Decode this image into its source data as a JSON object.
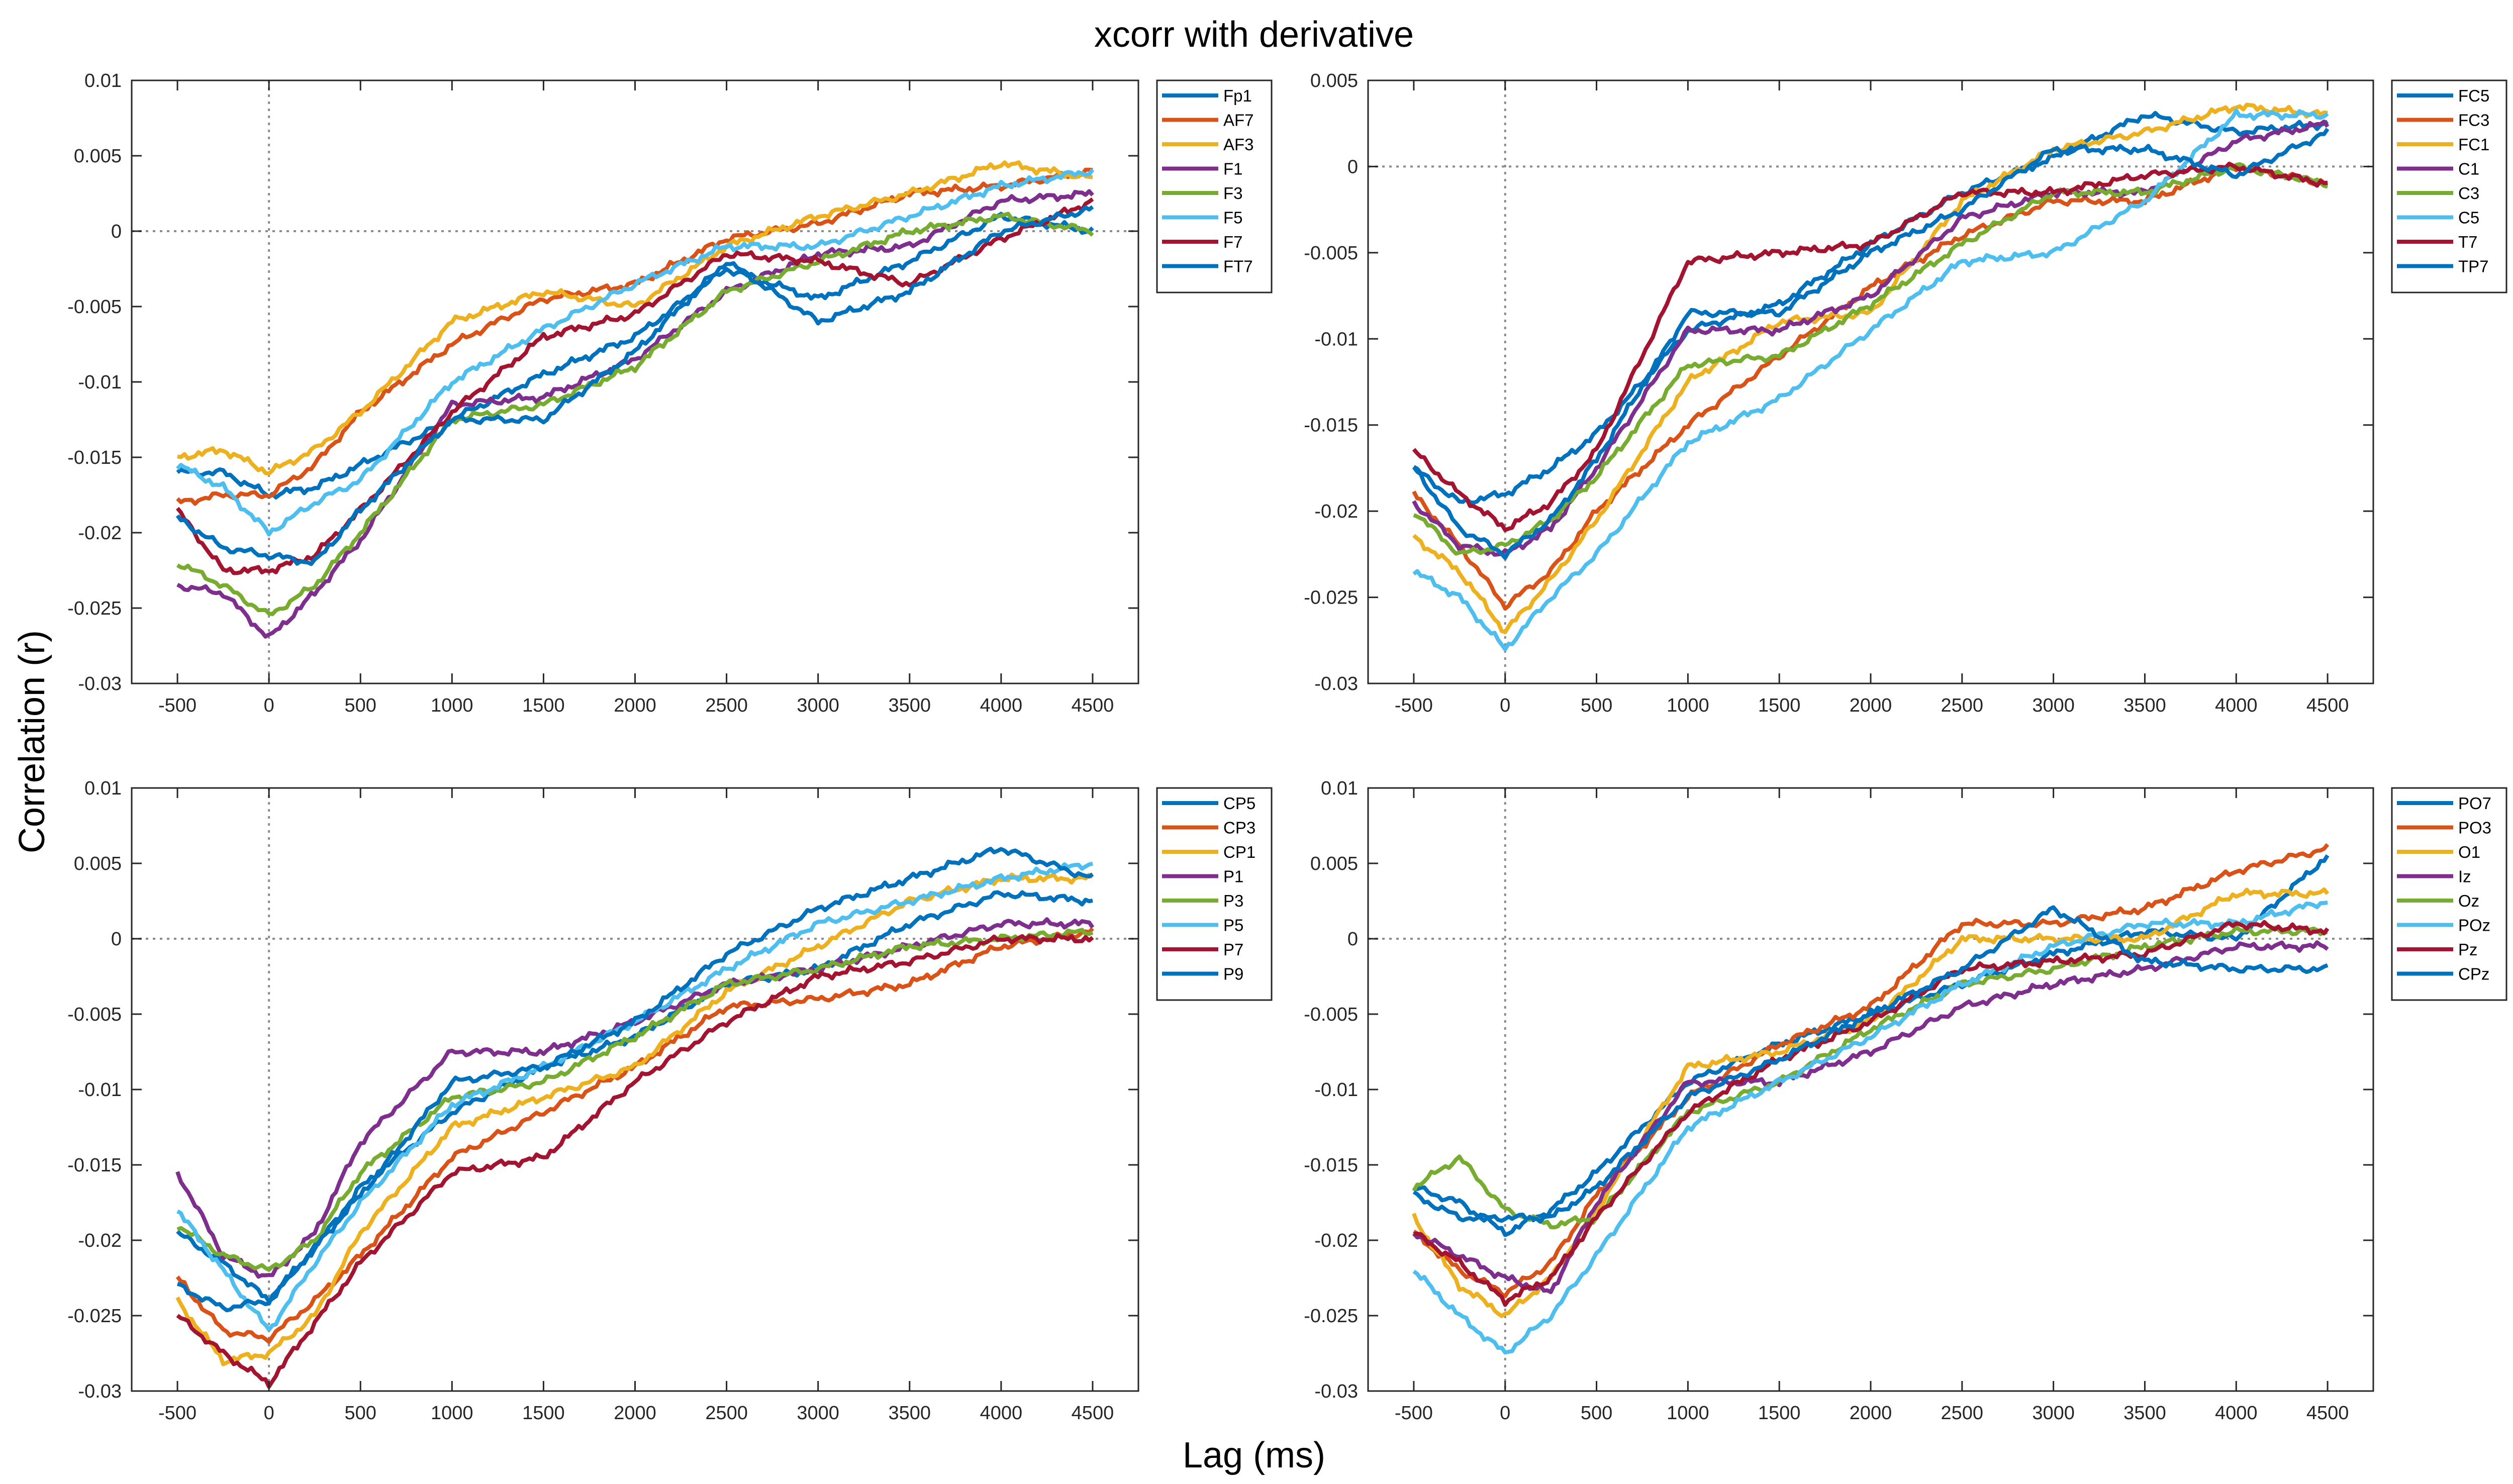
{
  "figure": {
    "title": "xcorr with derivative",
    "xlabel": "Lag (ms)",
    "ylabel": "Correlation (r)"
  },
  "colors": {
    "blue": "#0072BD",
    "orange": "#D95319",
    "yellow": "#EDB120",
    "purple": "#7E2F8E",
    "green": "#77AC30",
    "lightblue": "#4DBEEE",
    "darkred": "#A2142F",
    "reference_line": "#8c8c8c",
    "axis": "#262626"
  },
  "chart_data": [
    {
      "type": "line",
      "xlim": [
        -750,
        4750
      ],
      "ylim": [
        -0.03,
        0.01
      ],
      "x_ticks": [
        -500,
        0,
        500,
        1000,
        1500,
        2000,
        2500,
        3000,
        3500,
        4000,
        4500
      ],
      "y_ticks": [
        -0.03,
        -0.025,
        -0.02,
        -0.015,
        -0.01,
        -0.005,
        0,
        0.005,
        0.01
      ],
      "x_tick_labels": [
        "-500",
        "0",
        "500",
        "1000",
        "1500",
        "2000",
        "2500",
        "3000",
        "3500",
        "4000",
        "4500"
      ],
      "y_tick_labels": [
        "-0.03",
        "-0.025",
        "-0.02",
        "-0.015",
        "-0.01",
        "-0.005",
        "0",
        "0.005",
        "0.01"
      ],
      "x": [
        -500,
        -250,
        0,
        250,
        500,
        1000,
        1500,
        2000,
        2500,
        3000,
        3500,
        4000,
        4500
      ],
      "legend_position": "top-right-outside",
      "series": [
        {
          "name": "Fp1",
          "color": "blue",
          "values": [
            -0.016,
            -0.016,
            -0.0175,
            -0.017,
            -0.0155,
            -0.0125,
            -0.0095,
            -0.007,
            -0.0025,
            -0.0045,
            -0.002,
            0.001,
            0
          ]
        },
        {
          "name": "AF7",
          "color": "orange",
          "values": [
            -0.018,
            -0.0175,
            -0.0175,
            -0.0155,
            -0.012,
            -0.0075,
            -0.0045,
            -0.0035,
            -0.0005,
            0.0005,
            0.0025,
            0.003,
            0.004
          ]
        },
        {
          "name": "AF3",
          "color": "yellow",
          "values": [
            -0.015,
            -0.0145,
            -0.016,
            -0.0145,
            -0.012,
            -0.006,
            -0.004,
            -0.005,
            -0.001,
            0.001,
            0.0025,
            0.0045,
            0.0035
          ]
        },
        {
          "name": "F1",
          "color": "purple",
          "values": [
            -0.0235,
            -0.024,
            -0.027,
            -0.024,
            -0.0205,
            -0.0115,
            -0.011,
            -0.0085,
            -0.004,
            -0.0015,
            -0.001,
            0.002,
            0.0025
          ]
        },
        {
          "name": "F3",
          "color": "green",
          "values": [
            -0.022,
            -0.0235,
            -0.0255,
            -0.0235,
            -0.02,
            -0.0125,
            -0.0115,
            -0.009,
            -0.004,
            -0.002,
            0,
            0.001,
            0
          ]
        },
        {
          "name": "F5",
          "color": "lightblue",
          "values": [
            -0.0155,
            -0.017,
            -0.02,
            -0.018,
            -0.0165,
            -0.01,
            -0.0065,
            -0.0035,
            -0.001,
            -0.001,
            0.001,
            0.003,
            0.004
          ]
        },
        {
          "name": "F7",
          "color": "darkred",
          "values": [
            -0.0185,
            -0.0225,
            -0.0225,
            -0.0215,
            -0.0185,
            -0.012,
            -0.007,
            -0.0055,
            -0.0015,
            -0.002,
            -0.0035,
            -0.0005,
            0.002
          ]
        },
        {
          "name": "FT7",
          "color": "blue",
          "values": [
            -0.019,
            -0.021,
            -0.0215,
            -0.022,
            -0.0185,
            -0.0125,
            -0.0125,
            -0.008,
            -0.002,
            -0.006,
            -0.004,
            0,
            0.0015
          ]
        }
      ]
    },
    {
      "type": "line",
      "xlim": [
        -750,
        4750
      ],
      "ylim": [
        -0.03,
        0.005
      ],
      "x_ticks": [
        -500,
        0,
        500,
        1000,
        1500,
        2000,
        2500,
        3000,
        3500,
        4000,
        4500
      ],
      "y_ticks": [
        -0.03,
        -0.025,
        -0.02,
        -0.015,
        -0.01,
        -0.005,
        0,
        0.005
      ],
      "x_tick_labels": [
        "-500",
        "0",
        "500",
        "1000",
        "1500",
        "2000",
        "2500",
        "3000",
        "3500",
        "4000",
        "4500"
      ],
      "y_tick_labels": [
        "-0.03",
        "-0.025",
        "-0.02",
        "-0.015",
        "-0.01",
        "-0.005",
        "0",
        "0.005"
      ],
      "x": [
        -500,
        -250,
        0,
        250,
        500,
        1000,
        1500,
        2000,
        2500,
        3000,
        3500,
        4000,
        4500
      ],
      "legend_position": "top-right-outside",
      "series": [
        {
          "name": "FC5",
          "color": "blue",
          "values": [
            -0.0175,
            -0.0195,
            -0.019,
            -0.0175,
            -0.0155,
            -0.0095,
            -0.008,
            -0.0045,
            -0.0015,
            0.0005,
            0.003,
            0.002,
            0.0025
          ]
        },
        {
          "name": "FC3",
          "color": "orange",
          "values": [
            -0.019,
            -0.022,
            -0.0255,
            -0.0235,
            -0.02,
            -0.015,
            -0.011,
            -0.007,
            -0.004,
            -0.002,
            -0.002,
            0,
            -0.001
          ]
        },
        {
          "name": "FC1",
          "color": "yellow",
          "values": [
            -0.0215,
            -0.0235,
            -0.027,
            -0.024,
            -0.0205,
            -0.0125,
            -0.009,
            -0.0085,
            -0.002,
            0.001,
            0.002,
            0.0035,
            0.003
          ]
        },
        {
          "name": "C1",
          "color": "purple",
          "values": [
            -0.0195,
            -0.022,
            -0.0225,
            -0.021,
            -0.0175,
            -0.0095,
            -0.0095,
            -0.0075,
            -0.003,
            -0.0015,
            -0.0015,
            0.0015,
            0.0025
          ]
        },
        {
          "name": "C3",
          "color": "green",
          "values": [
            -0.02,
            -0.0225,
            -0.022,
            -0.0205,
            -0.018,
            -0.0115,
            -0.011,
            -0.008,
            -0.0045,
            -0.0015,
            -0.0015,
            0,
            -0.001
          ]
        },
        {
          "name": "C5",
          "color": "lightblue",
          "values": [
            -0.0235,
            -0.025,
            -0.028,
            -0.025,
            -0.0225,
            -0.016,
            -0.0135,
            -0.0095,
            -0.0055,
            -0.005,
            -0.002,
            0.003,
            0.003
          ]
        },
        {
          "name": "T7",
          "color": "darkred",
          "values": [
            -0.0165,
            -0.019,
            -0.021,
            -0.0195,
            -0.0165,
            -0.0055,
            -0.005,
            -0.0045,
            -0.0015,
            -0.0015,
            -0.0005,
            0,
            -0.001
          ]
        },
        {
          "name": "TP7",
          "color": "blue",
          "values": [
            -0.0175,
            -0.021,
            -0.0225,
            -0.0205,
            -0.017,
            -0.0085,
            -0.0085,
            -0.005,
            -0.0025,
            0.001,
            0.001,
            -0.0005,
            0.002
          ]
        }
      ]
    },
    {
      "type": "line",
      "xlim": [
        -750,
        4750
      ],
      "ylim": [
        -0.03,
        0.01
      ],
      "x_ticks": [
        -500,
        0,
        500,
        1000,
        1500,
        2000,
        2500,
        3000,
        3500,
        4000,
        4500
      ],
      "y_ticks": [
        -0.03,
        -0.025,
        -0.02,
        -0.015,
        -0.01,
        -0.005,
        0,
        0.005,
        0.01
      ],
      "x_tick_labels": [
        "-500",
        "0",
        "500",
        "1000",
        "1500",
        "2000",
        "2500",
        "3000",
        "3500",
        "4000",
        "4500"
      ],
      "y_tick_labels": [
        "-0.03",
        "-0.025",
        "-0.02",
        "-0.015",
        "-0.01",
        "-0.005",
        "0",
        "0.005",
        "0.01"
      ],
      "x": [
        -500,
        -250,
        0,
        250,
        500,
        1000,
        1500,
        2000,
        2500,
        3000,
        3500,
        4000,
        4500
      ],
      "legend_position": "top-right-outside",
      "series": [
        {
          "name": "CP5",
          "color": "blue",
          "values": [
            -0.0195,
            -0.0215,
            -0.024,
            -0.0205,
            -0.0165,
            -0.0115,
            -0.0085,
            -0.0065,
            -0.003,
            -0.002,
            0.001,
            0.003,
            0.0025
          ]
        },
        {
          "name": "CP3",
          "color": "orange",
          "values": [
            -0.0225,
            -0.026,
            -0.0265,
            -0.024,
            -0.021,
            -0.0145,
            -0.0115,
            -0.0085,
            -0.0045,
            -0.004,
            -0.003,
            -0.0005,
            0.0005
          ]
        },
        {
          "name": "CP1",
          "color": "yellow",
          "values": [
            -0.024,
            -0.028,
            -0.0275,
            -0.025,
            -0.0195,
            -0.0125,
            -0.0105,
            -0.0085,
            -0.0035,
            -0.0005,
            0.0025,
            0.004,
            0.004
          ]
        },
        {
          "name": "P1",
          "color": "purple",
          "values": [
            -0.0155,
            -0.021,
            -0.0225,
            -0.0195,
            -0.0135,
            -0.0075,
            -0.0075,
            -0.0055,
            -0.003,
            -0.002,
            -0.0005,
            0.001,
            0.001
          ]
        },
        {
          "name": "P3",
          "color": "green",
          "values": [
            -0.019,
            -0.021,
            -0.022,
            -0.02,
            -0.0155,
            -0.0105,
            -0.0095,
            -0.0065,
            -0.003,
            -0.002,
            -0.0005,
            0,
            0.0005
          ]
        },
        {
          "name": "P5",
          "color": "lightblue",
          "values": [
            -0.018,
            -0.022,
            -0.026,
            -0.0215,
            -0.0175,
            -0.011,
            -0.0085,
            -0.0055,
            -0.002,
            0.001,
            0.0025,
            0.004,
            0.005
          ]
        },
        {
          "name": "P7",
          "color": "darkred",
          "values": [
            -0.025,
            -0.0275,
            -0.0295,
            -0.0255,
            -0.0215,
            -0.0155,
            -0.0145,
            -0.0095,
            -0.0055,
            -0.0025,
            -0.0015,
            0,
            0
          ]
        },
        {
          "name": "P9",
          "color": "blue",
          "values": [
            -0.023,
            -0.0245,
            -0.024,
            -0.0205,
            -0.017,
            -0.0095,
            -0.0085,
            -0.0055,
            -0.001,
            0.002,
            0.004,
            0.006,
            0.004
          ]
        }
      ]
    },
    {
      "type": "line",
      "xlim": [
        -750,
        4750
      ],
      "ylim": [
        -0.03,
        0.01
      ],
      "x_ticks": [
        -500,
        0,
        500,
        1000,
        1500,
        2000,
        2500,
        3000,
        3500,
        4000,
        4500
      ],
      "y_ticks": [
        -0.03,
        -0.025,
        -0.02,
        -0.015,
        -0.01,
        -0.005,
        0,
        0.005,
        0.01
      ],
      "x_tick_labels": [
        "-500",
        "0",
        "500",
        "1000",
        "1500",
        "2000",
        "2500",
        "3000",
        "3500",
        "4000",
        "4500"
      ],
      "y_tick_labels": [
        "-0.03",
        "-0.025",
        "-0.02",
        "-0.015",
        "-0.01",
        "-0.005",
        "0",
        "0.005",
        "0.01"
      ],
      "x": [
        -500,
        -250,
        0,
        250,
        500,
        1000,
        1500,
        2000,
        2500,
        3000,
        3500,
        4000,
        4500
      ],
      "legend_position": "top-right-outside",
      "series": [
        {
          "name": "PO7",
          "color": "blue",
          "values": [
            -0.0165,
            -0.0175,
            -0.0195,
            -0.018,
            -0.0155,
            -0.0095,
            -0.007,
            -0.005,
            -0.003,
            -0.001,
            0.0005,
            0,
            0.0055
          ]
        },
        {
          "name": "PO3",
          "color": "orange",
          "values": [
            -0.0195,
            -0.022,
            -0.0235,
            -0.0215,
            -0.017,
            -0.0105,
            -0.007,
            -0.0045,
            0.001,
            0.001,
            0.002,
            0.0045,
            0.006
          ]
        },
        {
          "name": "O1",
          "color": "yellow",
          "values": [
            -0.0185,
            -0.023,
            -0.025,
            -0.0225,
            -0.018,
            -0.0085,
            -0.0075,
            -0.0055,
            0,
            0,
            0,
            0.003,
            0.003
          ]
        },
        {
          "name": "Iz",
          "color": "purple",
          "values": [
            -0.0195,
            -0.021,
            -0.0225,
            -0.0235,
            -0.0175,
            -0.0095,
            -0.0095,
            -0.0075,
            -0.0045,
            -0.003,
            -0.002,
            -0.0005,
            -0.0005
          ]
        },
        {
          "name": "Oz",
          "color": "green",
          "values": [
            -0.0165,
            -0.0145,
            -0.018,
            -0.019,
            -0.0185,
            -0.0115,
            -0.0095,
            -0.006,
            -0.003,
            -0.002,
            -0.0005,
            0.0005,
            0.0005
          ]
        },
        {
          "name": "POz",
          "color": "lightblue",
          "values": [
            -0.022,
            -0.025,
            -0.0275,
            -0.025,
            -0.021,
            -0.0125,
            -0.0095,
            -0.0065,
            -0.003,
            -0.0005,
            0.001,
            0.001,
            0.0025
          ]
        },
        {
          "name": "Pz",
          "color": "darkred",
          "values": [
            -0.0195,
            -0.0215,
            -0.024,
            -0.0225,
            -0.0185,
            -0.0115,
            -0.008,
            -0.0055,
            -0.002,
            -0.0015,
            -0.001,
            0.001,
            0.0005
          ]
        },
        {
          "name": "CPz",
          "color": "blue",
          "values": [
            -0.017,
            -0.0185,
            -0.0185,
            -0.0185,
            -0.0165,
            -0.0105,
            -0.008,
            -0.005,
            -0.002,
            0.002,
            -0.0015,
            -0.002,
            -0.002
          ]
        }
      ]
    }
  ]
}
